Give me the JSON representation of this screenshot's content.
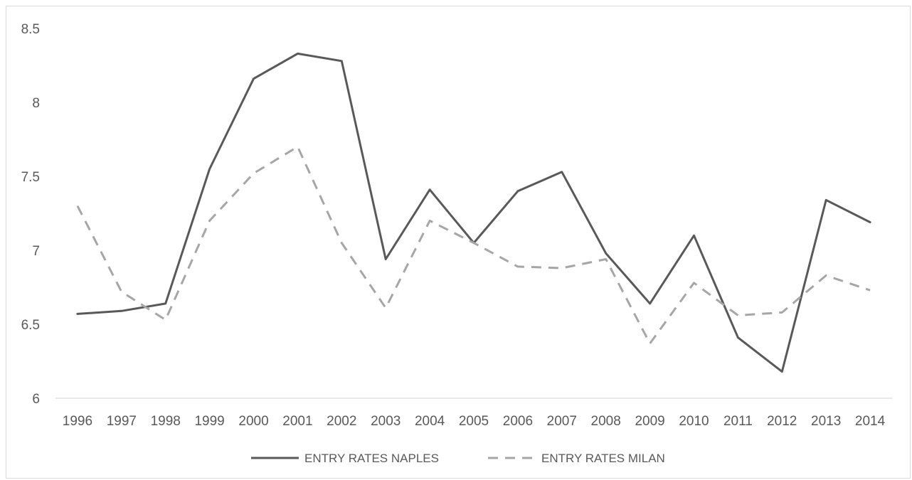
{
  "chart_data": {
    "type": "line",
    "title": "",
    "xlabel": "",
    "ylabel": "",
    "categories": [
      "1996",
      "1997",
      "1998",
      "1999",
      "2000",
      "2001",
      "2002",
      "2003",
      "2004",
      "2005",
      "2006",
      "2007",
      "2008",
      "2009",
      "2010",
      "2011",
      "2012",
      "2013",
      "2014"
    ],
    "ylim": [
      6,
      8.5
    ],
    "yticks": [
      "6",
      "6.5",
      "7",
      "7.5",
      "8",
      "8.5"
    ],
    "grid": false,
    "legend_position": "bottom",
    "series": [
      {
        "name": "ENTRY RATES NAPLES",
        "color": "#595959",
        "style": "solid",
        "values": [
          6.57,
          6.59,
          6.64,
          7.55,
          8.16,
          8.33,
          8.28,
          6.94,
          7.41,
          7.05,
          7.4,
          7.53,
          6.98,
          6.64,
          7.1,
          6.41,
          6.18,
          7.34,
          7.19
        ]
      },
      {
        "name": "ENTRY RATES MILAN",
        "color": "#a6a6a6",
        "style": "dashed",
        "values": [
          7.3,
          6.72,
          6.53,
          7.2,
          7.52,
          7.7,
          7.05,
          6.61,
          7.2,
          7.05,
          6.89,
          6.88,
          6.94,
          6.37,
          6.78,
          6.56,
          6.58,
          6.83,
          6.73
        ]
      }
    ]
  }
}
